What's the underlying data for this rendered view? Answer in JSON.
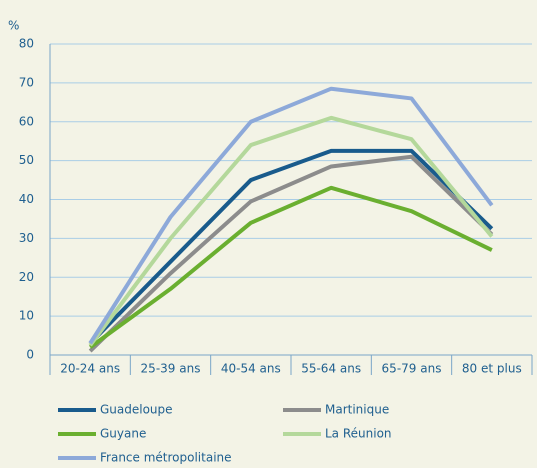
{
  "chart_data": {
    "type": "line",
    "y_axis_label": "%",
    "categories": [
      "20-24 ans",
      "25-39 ans",
      "40-54 ans",
      "55-64 ans",
      "65-79 ans",
      "80 et plus"
    ],
    "series": [
      {
        "name": "Guadeloupe",
        "color": "#195b8c",
        "values": [
          3,
          24,
          45,
          52.5,
          52.5,
          32.5
        ]
      },
      {
        "name": "Martinique",
        "color": "#8c8c8c",
        "values": [
          1,
          21,
          39.5,
          48.5,
          51,
          31
        ]
      },
      {
        "name": "Guyane",
        "color": "#6aaf30",
        "values": [
          2,
          17,
          34,
          43,
          37,
          27
        ]
      },
      {
        "name": "La Réunion",
        "color": "#b4d89b",
        "values": [
          2.5,
          30,
          54,
          61,
          55.5,
          30.5
        ]
      },
      {
        "name": "France métropolitaine",
        "color": "#8da9d9",
        "values": [
          3,
          35.5,
          60,
          68.5,
          66,
          38.5
        ]
      }
    ],
    "ylim": [
      0,
      80
    ],
    "yticks": [
      0,
      10,
      20,
      30,
      40,
      50,
      60,
      70,
      80
    ],
    "grid": true,
    "legend": "bottom"
  }
}
